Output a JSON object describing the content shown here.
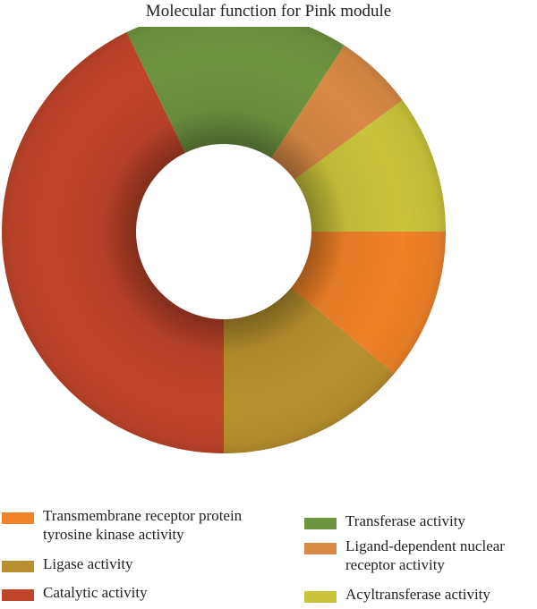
{
  "chart_data": {
    "type": "pie",
    "donut": true,
    "title": "Molecular function for Pink module",
    "categories": [
      "Transmembrane receptor protein tyrosine kinase activity",
      "Ligase activity",
      "Catalytic activity",
      "Transferase activity",
      "Ligand-dependent nuclear receptor activity",
      "Acyltransferase activity"
    ],
    "values": [
      11.5,
      14.5,
      44.5,
      17.0,
      6.0,
      10.5
    ],
    "colors": [
      "#f08228",
      "#b8902e",
      "#c0442a",
      "#6f9440",
      "#d98a45",
      "#c9c43a"
    ],
    "legend": {
      "position": "bottom",
      "items": [
        {
          "line1": "Transmembrane receptor protein",
          "line2": "tyrosine kinase activity",
          "color": "#f08228"
        },
        {
          "line1": "Ligase activity",
          "line2": "",
          "color": "#b8902e"
        },
        {
          "line1": "Catalytic activity",
          "line2": "",
          "color": "#c0442a"
        },
        {
          "line1": "Transferase activity",
          "line2": "",
          "color": "#6f9440"
        },
        {
          "line1": "Ligand-dependent nuclear",
          "line2": "receptor activity",
          "color": "#d98a45"
        },
        {
          "line1": "Acyltransferase activity",
          "line2": "",
          "color": "#c9c43a"
        }
      ]
    }
  }
}
